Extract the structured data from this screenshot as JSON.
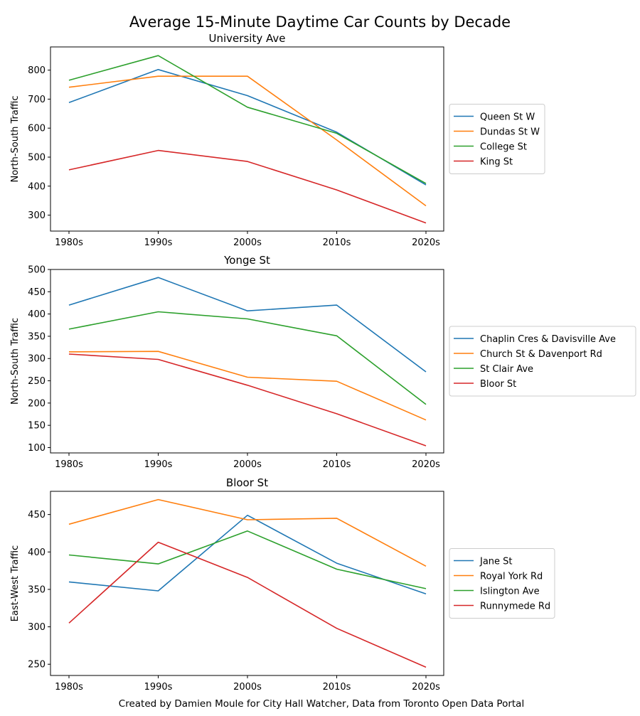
{
  "figure": {
    "title": "Average 15-Minute Daytime Car Counts by Decade",
    "caption": "Created by Damien Moule for City Hall Watcher, Data from Toronto Open Data Portal"
  },
  "chart_data": [
    {
      "type": "line",
      "title": "University Ave",
      "xlabel": "",
      "ylabel": "North-South Traffic",
      "categories": [
        "1980s",
        "1990s",
        "2000s",
        "2010s",
        "2020s"
      ],
      "ylim": [
        245,
        880
      ],
      "yticks": [
        300,
        400,
        500,
        600,
        700,
        800
      ],
      "grid": false,
      "legend": "right",
      "series": [
        {
          "name": "Queen St W",
          "color": "#1f77b4",
          "values": [
            688,
            802,
            712,
            586,
            404
          ]
        },
        {
          "name": "Dundas St W",
          "color": "#ff7f0e",
          "values": [
            741,
            779,
            779,
            559,
            332
          ]
        },
        {
          "name": "College St",
          "color": "#2ca02c",
          "values": [
            765,
            850,
            672,
            582,
            409
          ]
        },
        {
          "name": "King St",
          "color": "#d62728",
          "values": [
            456,
            523,
            485,
            387,
            273
          ]
        }
      ]
    },
    {
      "type": "line",
      "title": "Yonge St",
      "xlabel": "",
      "ylabel": "North-South Traffic",
      "categories": [
        "1980s",
        "1990s",
        "2000s",
        "2010s",
        "2020s"
      ],
      "ylim": [
        88,
        500
      ],
      "yticks": [
        100,
        150,
        200,
        250,
        300,
        350,
        400,
        450,
        500
      ],
      "grid": false,
      "legend": "right",
      "series": [
        {
          "name": "Chaplin Cres & Davisville Ave",
          "color": "#1f77b4",
          "values": [
            420,
            482,
            407,
            420,
            270
          ]
        },
        {
          "name": "Church St & Davenport Rd",
          "color": "#ff7f0e",
          "values": [
            315,
            316,
            258,
            249,
            162
          ]
        },
        {
          "name": "St Clair Ave",
          "color": "#2ca02c",
          "values": [
            366,
            405,
            389,
            351,
            197
          ]
        },
        {
          "name": "Bloor St",
          "color": "#d62728",
          "values": [
            310,
            298,
            240,
            176,
            104
          ]
        }
      ]
    },
    {
      "type": "line",
      "title": "Bloor St",
      "xlabel": "",
      "ylabel": "East-West Traffic",
      "categories": [
        "1980s",
        "1990s",
        "2000s",
        "2010s",
        "2020s"
      ],
      "ylim": [
        235,
        481
      ],
      "yticks": [
        250,
        300,
        350,
        400,
        450
      ],
      "grid": false,
      "legend": "right",
      "series": [
        {
          "name": "Jane St",
          "color": "#1f77b4",
          "values": [
            360,
            348,
            449,
            385,
            344
          ]
        },
        {
          "name": "Royal York Rd",
          "color": "#ff7f0e",
          "values": [
            437,
            470,
            443,
            445,
            381
          ]
        },
        {
          "name": "Islington Ave",
          "color": "#2ca02c",
          "values": [
            396,
            384,
            428,
            377,
            351
          ]
        },
        {
          "name": "Runnymede Rd",
          "color": "#d62728",
          "values": [
            305,
            413,
            366,
            298,
            246
          ]
        }
      ]
    }
  ]
}
